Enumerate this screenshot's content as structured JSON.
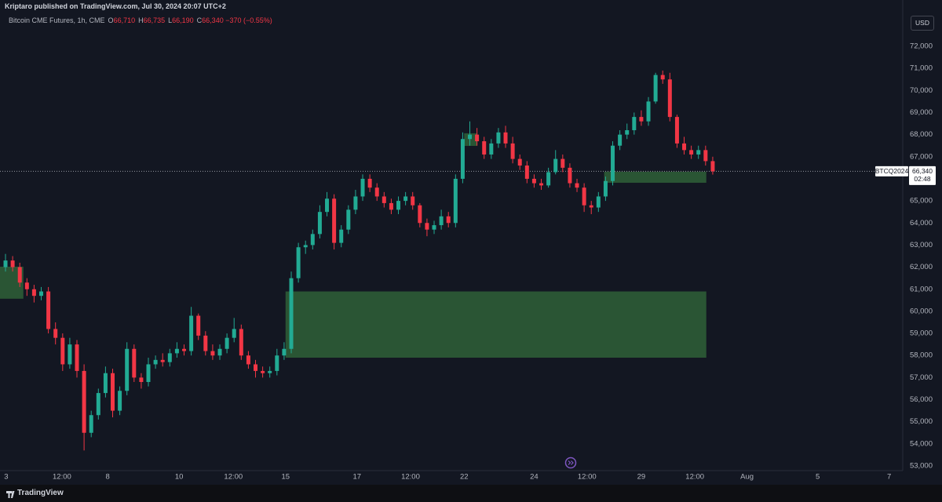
{
  "header": "Kriptaro published on TradingView.com, Jul 30, 2024 20:07 UTC+2",
  "footer": "TradingView",
  "chart_data": {
    "type": "candlestick",
    "legend": {
      "name": "Bitcoin CME Futures, 1h, CME",
      "fields": [
        {
          "key": "O",
          "value": "66,710"
        },
        {
          "key": "H",
          "value": "66,735"
        },
        {
          "key": "L",
          "value": "66,190"
        },
        {
          "key": "C",
          "value": "66,340"
        }
      ],
      "change": "−370 (−0.55%)"
    },
    "currency": "USD",
    "up_color": "#22ab94",
    "down_color": "#f23645",
    "zone_color": "#2e5c36",
    "grid": false,
    "x": [
      0,
      1,
      2,
      3,
      4,
      5,
      6,
      7,
      8,
      9,
      10,
      11,
      12,
      13,
      14,
      15,
      16,
      17,
      18,
      19,
      20,
      21,
      22,
      23,
      24,
      25,
      26,
      27,
      28,
      29,
      30,
      31,
      32,
      33,
      34,
      35,
      36,
      37,
      38,
      39,
      40,
      41,
      42,
      43,
      44,
      45,
      46,
      47,
      48,
      49,
      50,
      51,
      52,
      53,
      54,
      55,
      56,
      57,
      58,
      59,
      60,
      61,
      62,
      63,
      64,
      65,
      66,
      67,
      68,
      69,
      70,
      71,
      72,
      73,
      74,
      75,
      76,
      77,
      78,
      79,
      80,
      81,
      82,
      83,
      84,
      85,
      86,
      87,
      88,
      89,
      90,
      91,
      92,
      93,
      94,
      95,
      96,
      97,
      98,
      99
    ],
    "open": [
      62000,
      62300,
      62000,
      61300,
      61000,
      60700,
      60900,
      59200,
      58800,
      57600,
      58500,
      57300,
      54500,
      55300,
      56300,
      57200,
      55500,
      56400,
      58300,
      57000,
      56800,
      57600,
      57800,
      57700,
      58100,
      58300,
      58200,
      59800,
      58900,
      58200,
      58000,
      58300,
      58800,
      59200,
      58000,
      57600,
      57300,
      57200,
      57300,
      58000,
      58300,
      61500,
      62900,
      63000,
      63500,
      64500,
      65100,
      63100,
      63700,
      64600,
      65200,
      66000,
      65600,
      65200,
      64900,
      64600,
      65000,
      65200,
      64800,
      64000,
      63700,
      63900,
      64300,
      64000,
      66000,
      67800,
      68000,
      67700,
      67100,
      67600,
      68100,
      67600,
      66900,
      66600,
      66000,
      65800,
      65700,
      66300,
      66900,
      66500,
      65800,
      65600,
      64800,
      64700,
      65200,
      65900,
      67500,
      68000,
      68200,
      68800,
      68600,
      69500,
      70700,
      70500,
      68800,
      67600,
      67300,
      67100,
      67300,
      66800
    ],
    "high": [
      62600,
      62500,
      62200,
      61500,
      61200,
      61100,
      61100,
      59500,
      59000,
      58800,
      58700,
      57600,
      55500,
      56500,
      57500,
      57400,
      56600,
      58600,
      58500,
      57200,
      57900,
      58000,
      58100,
      58300,
      58600,
      58500,
      60200,
      59900,
      59100,
      58500,
      58500,
      59000,
      59700,
      59400,
      58200,
      57800,
      57500,
      57500,
      58300,
      58600,
      61800,
      63100,
      63200,
      63700,
      64800,
      65400,
      65300,
      63900,
      64800,
      65500,
      66200,
      66200,
      65800,
      65400,
      65100,
      65200,
      65400,
      65400,
      64900,
      64200,
      64100,
      64600,
      64500,
      66200,
      68100,
      68600,
      68300,
      67900,
      67800,
      68300,
      68400,
      67900,
      67100,
      66800,
      66200,
      66000,
      66500,
      67300,
      67100,
      66700,
      66000,
      65800,
      65000,
      65400,
      66100,
      67700,
      68200,
      68500,
      69000,
      69100,
      69700,
      70800,
      70900,
      70800,
      68900,
      67900,
      67500,
      67500,
      67500,
      67000
    ],
    "low": [
      61800,
      61800,
      61100,
      60700,
      60400,
      60500,
      59000,
      58500,
      57300,
      57400,
      57000,
      53700,
      54300,
      55100,
      56100,
      55200,
      55300,
      56200,
      56800,
      56500,
      56600,
      57400,
      57500,
      57500,
      57900,
      58000,
      58000,
      58700,
      58000,
      57800,
      57800,
      58100,
      58600,
      57800,
      57400,
      57000,
      57000,
      57000,
      57100,
      57800,
      58100,
      61300,
      62600,
      62800,
      63300,
      64300,
      62800,
      62900,
      63500,
      64400,
      65000,
      65400,
      65000,
      64700,
      64400,
      64400,
      64800,
      64600,
      63800,
      63400,
      63500,
      63700,
      63800,
      63800,
      65800,
      67500,
      67500,
      66900,
      66900,
      67400,
      67400,
      66700,
      66400,
      65800,
      65600,
      65500,
      65600,
      66200,
      66300,
      65600,
      65400,
      64500,
      64400,
      64500,
      65000,
      65700,
      67300,
      67800,
      68000,
      68400,
      68400,
      69400,
      70300,
      68600,
      67400,
      67100,
      66900,
      66900,
      66600,
      66190
    ],
    "close": [
      62300,
      62000,
      61300,
      61000,
      60700,
      60900,
      59200,
      58800,
      57600,
      58500,
      57300,
      54500,
      55300,
      56300,
      57200,
      55500,
      56400,
      58300,
      57000,
      56800,
      57600,
      57800,
      57700,
      58100,
      58300,
      58200,
      59800,
      58900,
      58200,
      58000,
      58300,
      58800,
      59200,
      58000,
      57600,
      57300,
      57200,
      57300,
      58000,
      58300,
      61500,
      62900,
      63000,
      63500,
      64500,
      65100,
      63100,
      63700,
      64600,
      65200,
      66000,
      65600,
      65200,
      64900,
      64600,
      65000,
      65200,
      64800,
      64000,
      63700,
      63900,
      64300,
      64000,
      66000,
      67800,
      68000,
      67700,
      67100,
      67600,
      68100,
      67600,
      66900,
      66600,
      66000,
      65800,
      65700,
      66300,
      66900,
      66500,
      65800,
      65600,
      64800,
      64700,
      65200,
      65900,
      67500,
      68000,
      68200,
      68800,
      68600,
      69500,
      70700,
      70500,
      68800,
      67600,
      67300,
      67100,
      67300,
      66800,
      66340
    ],
    "zones": [
      {
        "start": -0.8,
        "end": 2.5,
        "top": 62020,
        "bottom": 60570
      },
      {
        "start": 39.2,
        "end": 98.1,
        "top": 60900,
        "bottom": 57900
      },
      {
        "start": 64.2,
        "end": 66,
        "top": 68060,
        "bottom": 67490
      },
      {
        "start": 83.8,
        "end": 98.1,
        "top": 66320,
        "bottom": 65820
      }
    ],
    "last_price": {
      "value": 66340,
      "label": "66,340"
    },
    "symbol_tag": "BTCQ2024",
    "countdown": "02:48",
    "xlim": [
      -0.77,
      125.6
    ],
    "ylim": [
      52787,
      74095
    ],
    "xticks": [
      {
        "value": 0.1,
        "label": "3"
      },
      {
        "value": 7.9,
        "label": "12:00"
      },
      {
        "value": 14.3,
        "label": "8"
      },
      {
        "value": 24.3,
        "label": "10"
      },
      {
        "value": 31.9,
        "label": "12:00"
      },
      {
        "value": 39.2,
        "label": "15"
      },
      {
        "value": 49.2,
        "label": "17"
      },
      {
        "value": 56.7,
        "label": "12:00"
      },
      {
        "value": 64.2,
        "label": "22"
      },
      {
        "value": 74,
        "label": "24"
      },
      {
        "value": 81.4,
        "label": "12:00"
      },
      {
        "value": 89,
        "label": "29"
      },
      {
        "value": 96.5,
        "label": "12:00"
      },
      {
        "value": 103.8,
        "label": "Aug"
      },
      {
        "value": 113.7,
        "label": "5"
      },
      {
        "value": 123.7,
        "label": "7"
      }
    ],
    "yticks": [
      {
        "value": 53000,
        "label": "53,000"
      },
      {
        "value": 54000,
        "label": "54,000"
      },
      {
        "value": 55000,
        "label": "55,000"
      },
      {
        "value": 56000,
        "label": "56,000"
      },
      {
        "value": 57000,
        "label": "57,000"
      },
      {
        "value": 58000,
        "label": "58,000"
      },
      {
        "value": 59000,
        "label": "59,000"
      },
      {
        "value": 60000,
        "label": "60,000"
      },
      {
        "value": 61000,
        "label": "61,000"
      },
      {
        "value": 62000,
        "label": "62,000"
      },
      {
        "value": 63000,
        "label": "63,000"
      },
      {
        "value": 64000,
        "label": "64,000"
      },
      {
        "value": 65000,
        "label": "65,000"
      },
      {
        "value": 66000,
        "label": "66,000"
      },
      {
        "value": 67000,
        "label": "67,000"
      },
      {
        "value": 68000,
        "label": "68,000"
      },
      {
        "value": 69000,
        "label": "69,000"
      },
      {
        "value": 70000,
        "label": "70,000"
      },
      {
        "value": 71000,
        "label": "71,000"
      },
      {
        "value": 72000,
        "label": "72,000"
      }
    ]
  }
}
